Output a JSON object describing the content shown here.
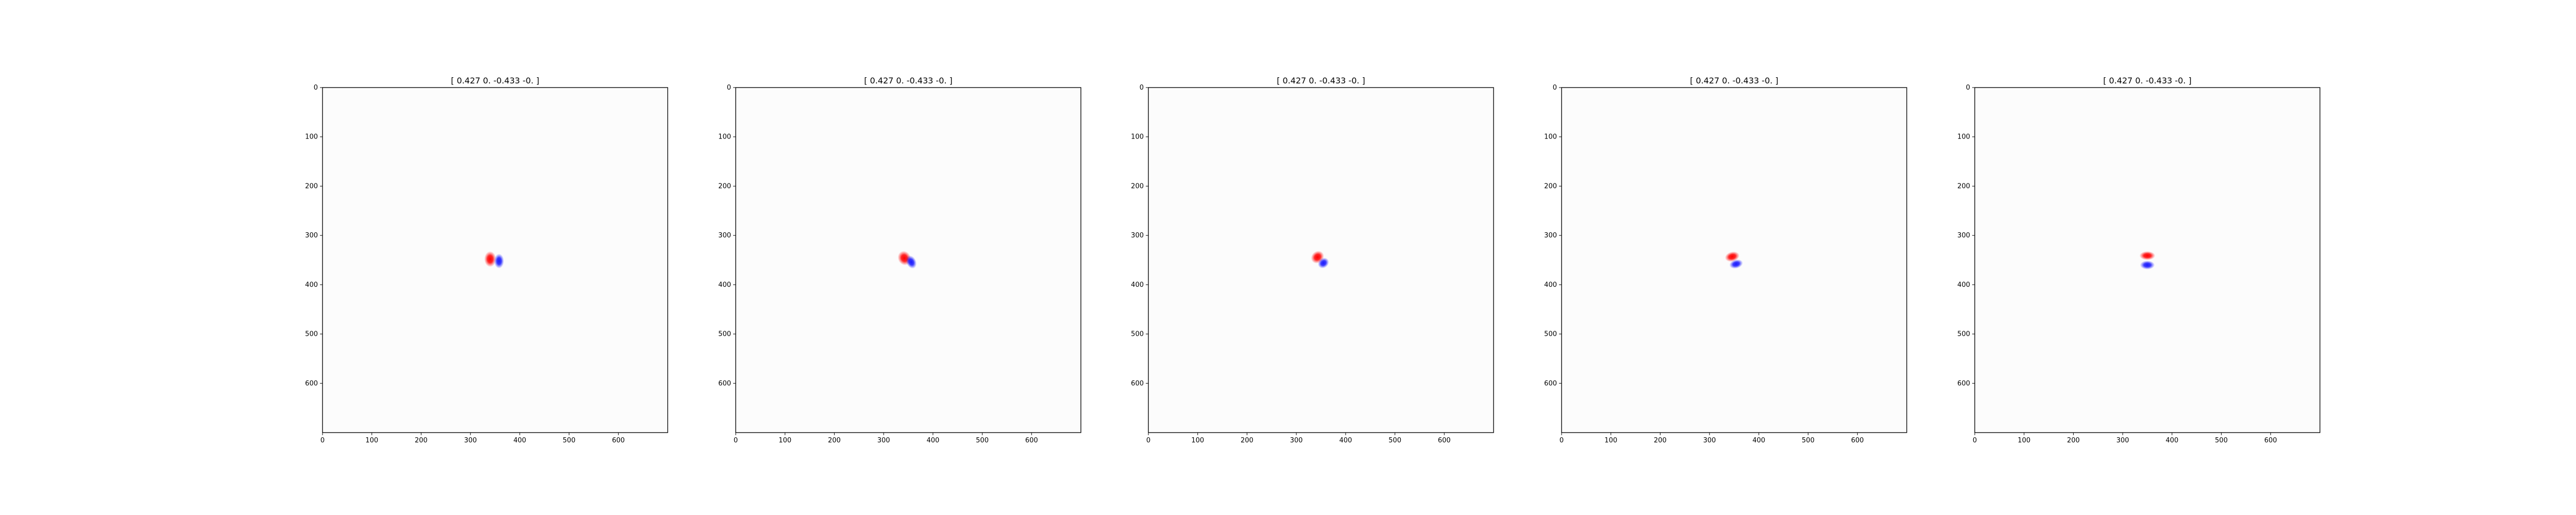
{
  "chart_data": {
    "type": "heatmap",
    "colormap": "bwr",
    "colors": {
      "positive": "#ff0000",
      "negative": "#0000ff",
      "background": "#fcfcfc"
    },
    "image_extent": {
      "x": [
        0,
        700
      ],
      "y": [
        0,
        700
      ]
    },
    "x_ticks": [
      0,
      100,
      200,
      300,
      400,
      500,
      600
    ],
    "y_ticks": [
      0,
      100,
      200,
      300,
      400,
      500,
      600
    ],
    "y_inverted": true,
    "grid": false,
    "panels": [
      {
        "title": "[ 0.427  0.    -0.433 -0.   ]",
        "blobs": [
          {
            "sign": "positive",
            "x": 340,
            "y": 348,
            "rx": 12,
            "ry": 16,
            "rotation": 0,
            "intensity": 1.0
          },
          {
            "sign": "negative",
            "x": 358,
            "y": 352,
            "rx": 10,
            "ry": 15,
            "rotation": 0,
            "intensity": 0.9
          }
        ]
      },
      {
        "title": "[ 0.427  0.    -0.433 -0.   ]",
        "blobs": [
          {
            "sign": "positive",
            "x": 342,
            "y": 346,
            "rx": 13,
            "ry": 15,
            "rotation": -25,
            "intensity": 1.0
          },
          {
            "sign": "negative",
            "x": 356,
            "y": 354,
            "rx": 10,
            "ry": 14,
            "rotation": -25,
            "intensity": 0.9
          }
        ]
      },
      {
        "title": "[ 0.427  0.    -0.433 -0.   ]",
        "blobs": [
          {
            "sign": "positive",
            "x": 343,
            "y": 344,
            "rx": 14,
            "ry": 12,
            "rotation": -40,
            "intensity": 1.0
          },
          {
            "sign": "negative",
            "x": 355,
            "y": 356,
            "rx": 12,
            "ry": 10,
            "rotation": -40,
            "intensity": 0.9
          }
        ]
      },
      {
        "title": "[ 0.427  0.    -0.433 -0.   ]",
        "blobs": [
          {
            "sign": "positive",
            "x": 346,
            "y": 343,
            "rx": 15,
            "ry": 10,
            "rotation": -15,
            "intensity": 1.0
          },
          {
            "sign": "negative",
            "x": 354,
            "y": 358,
            "rx": 14,
            "ry": 9,
            "rotation": -15,
            "intensity": 0.9
          }
        ]
      },
      {
        "title": "[ 0.427  0.    -0.433 -0.   ]",
        "blobs": [
          {
            "sign": "positive",
            "x": 350,
            "y": 341,
            "rx": 16,
            "ry": 9,
            "rotation": 0,
            "intensity": 1.0
          },
          {
            "sign": "negative",
            "x": 350,
            "y": 360,
            "rx": 15,
            "ry": 9,
            "rotation": 0,
            "intensity": 0.9
          }
        ]
      }
    ]
  }
}
